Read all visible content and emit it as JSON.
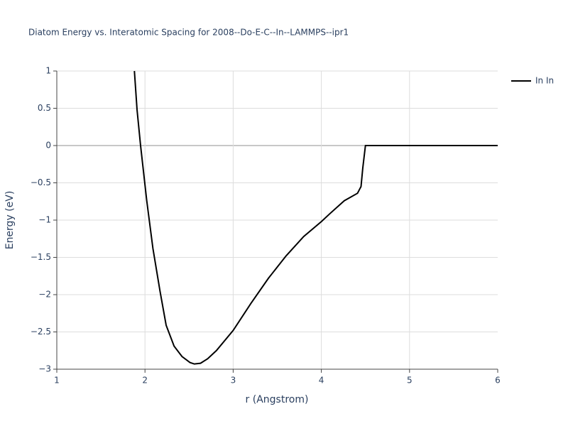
{
  "chart_data": {
    "type": "line",
    "title": "Diatom Energy vs. Interatomic Spacing for 2008--Do-E-C--In--LAMMPS--ipr1",
    "x_label": "r (Angstrom)",
    "y_label": "Energy (eV)",
    "x": [
      1.88,
      1.91,
      1.95,
      2.02,
      2.09,
      2.17,
      2.24,
      2.33,
      2.42,
      2.51,
      2.56,
      2.63,
      2.71,
      2.81,
      3.0,
      3.2,
      3.4,
      3.6,
      3.8,
      4.0,
      4.1,
      4.26,
      4.41,
      4.45,
      4.47,
      4.5,
      6.0
    ],
    "series": [
      {
        "name": "In In",
        "color": "#000000",
        "values": [
          1.0,
          0.48,
          0.0,
          -0.74,
          -1.38,
          -1.95,
          -2.41,
          -2.69,
          -2.83,
          -2.91,
          -2.93,
          -2.92,
          -2.86,
          -2.75,
          -2.48,
          -2.12,
          -1.78,
          -1.48,
          -1.22,
          -1.02,
          -0.91,
          -0.74,
          -0.64,
          -0.55,
          -0.3,
          0.0,
          0.0
        ]
      }
    ],
    "xlim": [
      1,
      6
    ],
    "xticks": [
      1,
      2,
      3,
      4,
      5,
      6
    ],
    "ylim": [
      -3,
      1
    ],
    "yticks": [
      {
        "value": -3,
        "label": "−3"
      },
      {
        "value": -2.5,
        "label": "−2.5"
      },
      {
        "value": -2,
        "label": "−2"
      },
      {
        "value": -1.5,
        "label": "−1.5"
      },
      {
        "value": -1,
        "label": "−1"
      },
      {
        "value": -0.5,
        "label": "−0.5"
      },
      0,
      0.5,
      1
    ],
    "grid": true,
    "zeroline": true,
    "legend": "top-right"
  }
}
